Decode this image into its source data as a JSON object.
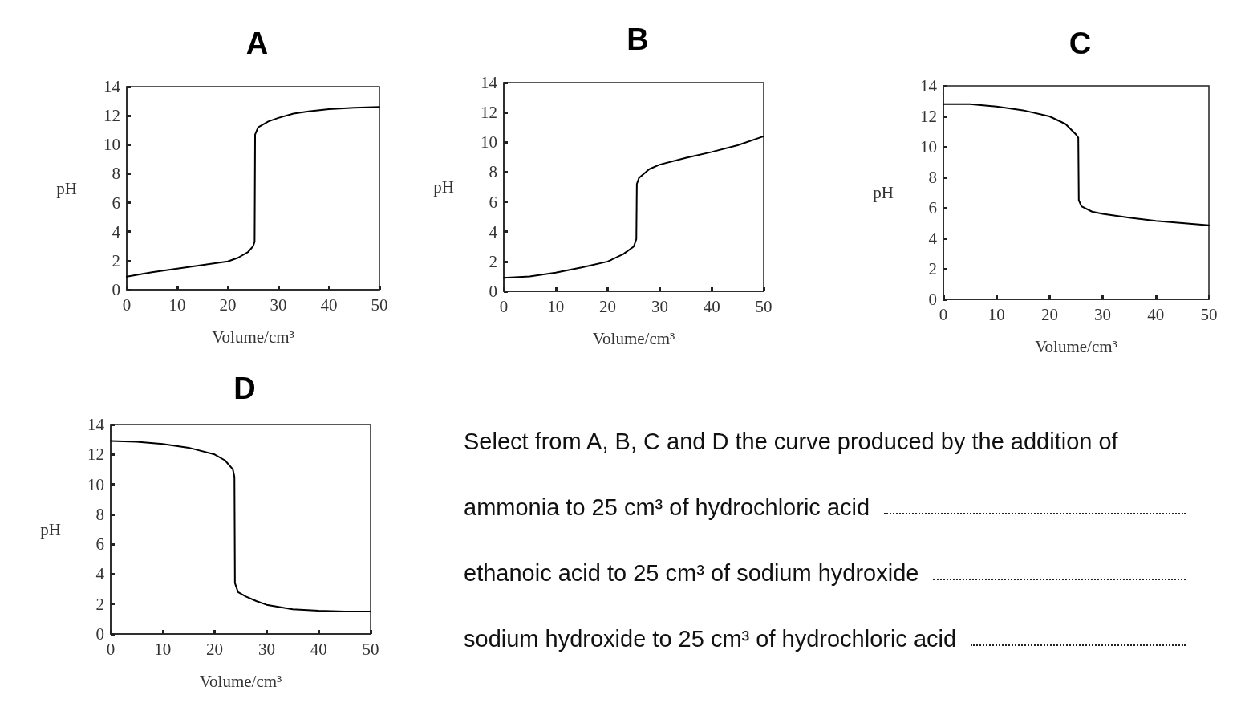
{
  "chart_data": [
    {
      "type": "line",
      "title": "A",
      "xlabel": "Volume/cm³",
      "ylabel": "pH",
      "xlim": [
        0,
        50
      ],
      "xticks": [
        0,
        10,
        20,
        30,
        40,
        50
      ],
      "ylim": [
        0,
        14
      ],
      "yticks": [
        0,
        2,
        4,
        6,
        8,
        10,
        12,
        14
      ],
      "grid": false,
      "marker": "none",
      "line_style": "solid",
      "series": [
        {
          "color": "#000000",
          "x": [
            0,
            5,
            10,
            15,
            20,
            22,
            24,
            25,
            25.3,
            25.4,
            26,
            28,
            30,
            33,
            36,
            40,
            45,
            50
          ],
          "values": [
            0.9,
            1.2,
            1.45,
            1.7,
            1.95,
            2.2,
            2.6,
            3.0,
            3.3,
            10.7,
            11.2,
            11.6,
            11.85,
            12.15,
            12.3,
            12.45,
            12.55,
            12.6
          ]
        }
      ]
    },
    {
      "type": "line",
      "title": "B",
      "xlabel": "Volume/cm³",
      "ylabel": "pH",
      "xlim": [
        0,
        50
      ],
      "xticks": [
        0,
        10,
        20,
        30,
        40,
        50
      ],
      "ylim": [
        0,
        14
      ],
      "yticks": [
        0,
        2,
        4,
        6,
        8,
        10,
        12,
        14
      ],
      "grid": false,
      "marker": "none",
      "line_style": "solid",
      "series": [
        {
          "color": "#000000",
          "x": [
            0,
            5,
            10,
            15,
            20,
            23,
            25,
            25.5,
            25.6,
            26,
            28,
            30,
            35,
            40,
            45,
            50
          ],
          "values": [
            0.9,
            1.0,
            1.25,
            1.6,
            2.0,
            2.5,
            3.0,
            3.5,
            7.2,
            7.6,
            8.2,
            8.5,
            8.95,
            9.35,
            9.8,
            10.4
          ]
        }
      ]
    },
    {
      "type": "line",
      "title": "C",
      "xlabel": "Volume/cm³",
      "ylabel": "pH",
      "xlim": [
        0,
        50
      ],
      "xticks": [
        0,
        10,
        20,
        30,
        40,
        50
      ],
      "ylim": [
        0,
        14
      ],
      "yticks": [
        0,
        2,
        4,
        6,
        8,
        10,
        12,
        14
      ],
      "grid": false,
      "marker": "none",
      "line_style": "solid",
      "series": [
        {
          "color": "#000000",
          "x": [
            0,
            5,
            10,
            15,
            20,
            23,
            25,
            25.4,
            25.5,
            26,
            28,
            30,
            35,
            40,
            45,
            50
          ],
          "values": [
            12.8,
            12.8,
            12.65,
            12.4,
            12.0,
            11.5,
            10.8,
            10.6,
            6.5,
            6.1,
            5.75,
            5.6,
            5.35,
            5.15,
            5.0,
            4.85
          ]
        }
      ]
    },
    {
      "type": "line",
      "title": "D",
      "xlabel": "Volume/cm³",
      "ylabel": "pH",
      "xlim": [
        0,
        50
      ],
      "xticks": [
        0,
        10,
        20,
        30,
        40,
        50
      ],
      "ylim": [
        0,
        14
      ],
      "yticks": [
        0,
        2,
        4,
        6,
        8,
        10,
        12,
        14
      ],
      "grid": false,
      "marker": "none",
      "line_style": "solid",
      "series": [
        {
          "color": "#000000",
          "x": [
            0,
            5,
            10,
            15,
            20,
            22,
            23.5,
            23.8,
            23.9,
            24.5,
            26,
            28,
            30,
            35,
            40,
            45,
            50
          ],
          "values": [
            12.9,
            12.85,
            12.7,
            12.45,
            12.0,
            11.6,
            11.0,
            10.5,
            3.4,
            2.8,
            2.5,
            2.2,
            1.95,
            1.65,
            1.55,
            1.5,
            1.5
          ]
        }
      ]
    },
    {
      "type": "other",
      "annotations": [
        "Select from A, B, C and D the curve produced by the addition of",
        "ammonia to 25 cm³ of hydrochloric acid",
        "ethanoic acid to 25 cm³ of sodium hydroxide",
        "sodium hydroxide to 25 cm³ of hydrochloric acid"
      ]
    }
  ]
}
